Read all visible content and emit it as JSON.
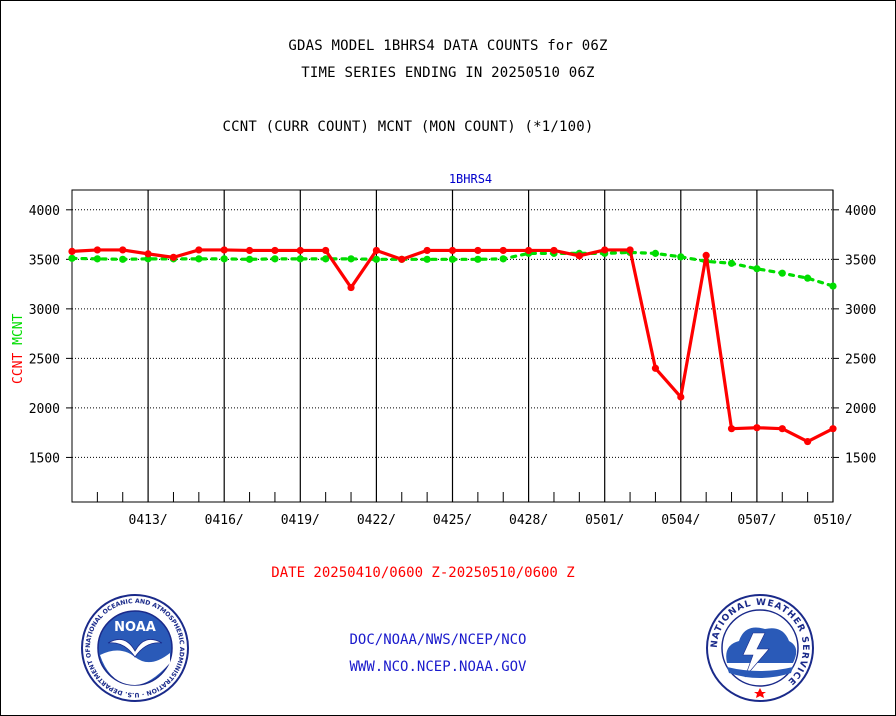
{
  "header": {
    "title1": "GDAS MODEL 1BHRS4 DATA COUNTS for 06Z",
    "title2": "TIME SERIES ENDING IN 20250510 06Z",
    "title3": "CCNT (CURR COUNT) MCNT (MON COUNT) (*1/100)"
  },
  "footer": {
    "date_range": "DATE 20250410/0600 Z-20250510/0600 Z",
    "org_line": "DOC/NOAA/NWS/NCEP/NCO",
    "url_line": "WWW.NCO.NCEP.NOAA.GOV",
    "noaa_seal_text": "NATIONAL OCEANIC AND ATMOSPHERIC ADMINISTRATION · U.S. DEPARTMENT OF COMMERCE",
    "noaa_center": "NOAA",
    "nws_seal_text": "NATIONAL WEATHER SERVICE"
  },
  "colors": {
    "ccnt": "#ff0000",
    "mcnt": "#00dd00",
    "subtitle": "#0000cc",
    "footer_blue": "#1a1acc",
    "footer_red": "#ff0000"
  },
  "chart_data": {
    "type": "line",
    "subtitle": "1BHRS4",
    "ylabel_series": [
      "CCNT",
      "MCNT"
    ],
    "ylim": [
      1050,
      4200
    ],
    "yticks": [
      1500,
      2000,
      2500,
      3000,
      3500,
      4000
    ],
    "xlim": [
      0,
      30
    ],
    "x_tick_positions": [
      3,
      6,
      9,
      12,
      15,
      18,
      21,
      24,
      27,
      30
    ],
    "x_tick_labels": [
      "0413/",
      "0416/",
      "0419/",
      "0422/",
      "0425/",
      "0428/",
      "0501/",
      "0504/",
      "0507/",
      "0510/"
    ],
    "grid": true,
    "x": [
      0,
      1,
      2,
      3,
      4,
      5,
      6,
      7,
      8,
      9,
      10,
      11,
      12,
      13,
      14,
      15,
      16,
      17,
      18,
      19,
      20,
      21,
      22,
      23,
      24,
      25,
      26,
      27,
      28,
      29,
      30
    ],
    "series": [
      {
        "name": "CCNT",
        "values": [
          3580,
          3595,
          3595,
          3555,
          3520,
          3595,
          3595,
          3590,
          3590,
          3590,
          3590,
          3215,
          3590,
          3500,
          3590,
          3590,
          3590,
          3590,
          3590,
          3590,
          3535,
          3595,
          3595,
          2400,
          2110,
          3540,
          1790,
          1800,
          1790,
          1660,
          1790
        ]
      },
      {
        "name": "MCNT",
        "values": [
          3510,
          3505,
          3500,
          3505,
          3505,
          3505,
          3505,
          3500,
          3505,
          3505,
          3505,
          3505,
          3500,
          3500,
          3500,
          3500,
          3500,
          3505,
          3560,
          3560,
          3560,
          3560,
          3570,
          3560,
          3525,
          3480,
          3460,
          3405,
          3360,
          3310,
          3230
        ]
      }
    ]
  }
}
